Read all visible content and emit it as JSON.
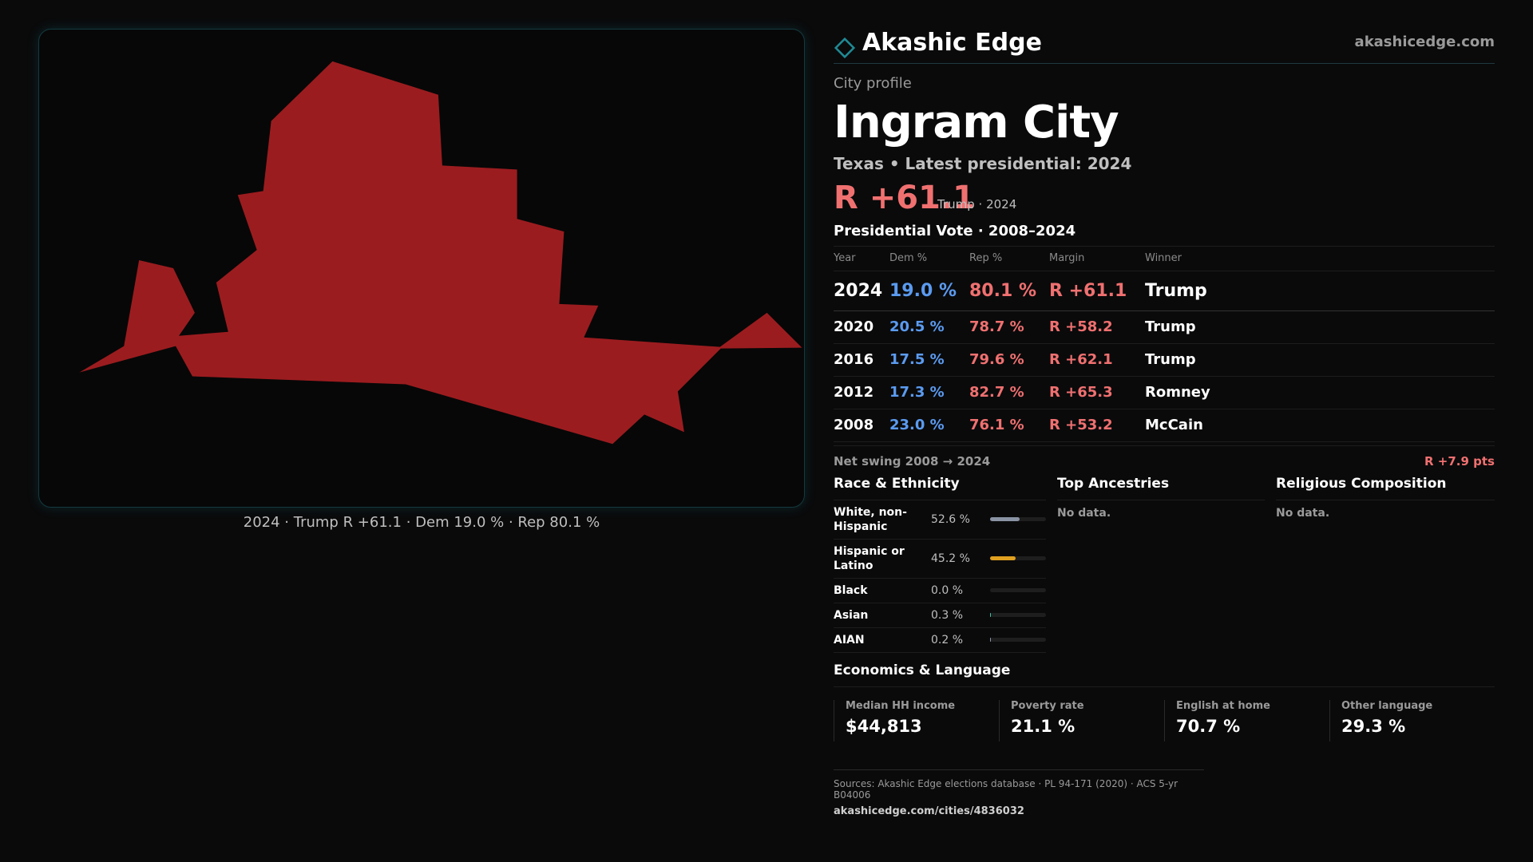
{
  "map": {
    "caption": "2024 · Trump R +61.1 · Dem 19.0 % · Rep 80.1 %",
    "fill_color": "#9b1c1f"
  },
  "brand": {
    "name": "Akashic Edge",
    "url": "akashicedge.com",
    "logo_icon": "diamond-icon"
  },
  "profile": {
    "label": "City profile",
    "city": "Ingram City",
    "subtitle": "Texas • Latest presidential: 2024",
    "margin": "R +61.1",
    "margin_note": "Trump · 2024"
  },
  "presidential": {
    "title": "Presidential Vote · 2008–2024",
    "headers": {
      "year": "Year",
      "dem": "Dem %",
      "rep": "Rep %",
      "margin": "Margin",
      "winner": "Winner"
    },
    "rows": [
      {
        "year": "2024",
        "dem": "19.0 %",
        "rep": "80.1 %",
        "margin": "R +61.1",
        "winner": "Trump"
      },
      {
        "year": "2020",
        "dem": "20.5 %",
        "rep": "78.7 %",
        "margin": "R +58.2",
        "winner": "Trump"
      },
      {
        "year": "2016",
        "dem": "17.5 %",
        "rep": "79.6 %",
        "margin": "R +62.1",
        "winner": "Trump"
      },
      {
        "year": "2012",
        "dem": "17.3 %",
        "rep": "82.7 %",
        "margin": "R +65.3",
        "winner": "Romney"
      },
      {
        "year": "2008",
        "dem": "23.0 %",
        "rep": "76.1 %",
        "margin": "R +53.2",
        "winner": "McCain"
      }
    ],
    "swing_label": "Net swing 2008 → 2024",
    "swing_value": "R +7.9 pts"
  },
  "race": {
    "title": "Race & Ethnicity",
    "rows": [
      {
        "name": "White, non-Hispanic",
        "pct_label": "52.6 %",
        "pct": 52.6,
        "color": "#8a93a3"
      },
      {
        "name": "Hispanic or Latino",
        "pct_label": "45.2 %",
        "pct": 45.2,
        "color": "#e0a020"
      },
      {
        "name": "Black",
        "pct_label": "0.0 %",
        "pct": 0.0,
        "color": "#8a93a3"
      },
      {
        "name": "Asian",
        "pct_label": "0.3 %",
        "pct": 0.3,
        "color": "#40c0a0"
      },
      {
        "name": "AIAN",
        "pct_label": "0.2 %",
        "pct": 0.2,
        "color": "#8a93a3"
      }
    ]
  },
  "ancestries": {
    "title": "Top Ancestries",
    "empty": "No data."
  },
  "religion": {
    "title": "Religious Composition",
    "empty": "No data."
  },
  "economics": {
    "title": "Economics & Language",
    "items": [
      {
        "label": "Median HH income",
        "value": "$44,813"
      },
      {
        "label": "Poverty rate",
        "value": "21.1 %"
      },
      {
        "label": "English at home",
        "value": "70.7 %"
      },
      {
        "label": "Other language",
        "value": "29.3 %"
      }
    ]
  },
  "footer": {
    "sources": "Sources: Akashic Edge elections database · PL 94-171 (2020) · ACS 5-yr B04006",
    "url": "akashicedge.com/cities/4836032"
  }
}
